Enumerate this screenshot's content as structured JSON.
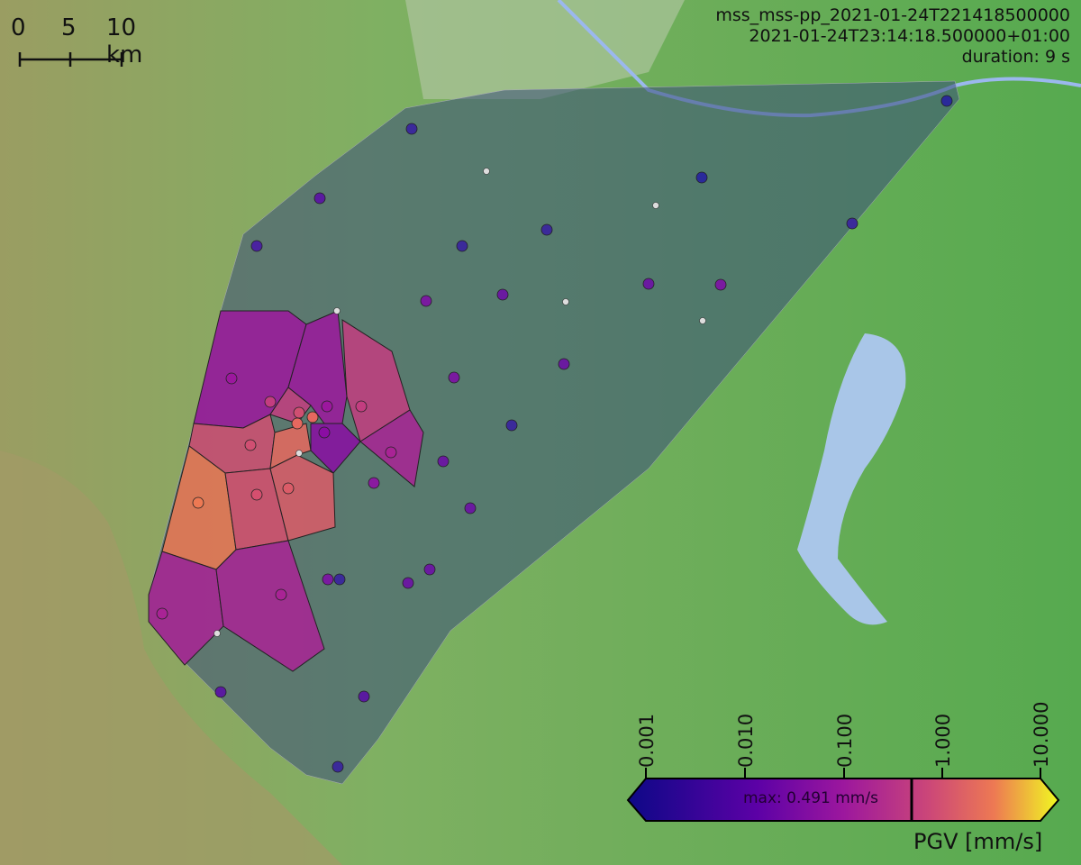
{
  "header": {
    "event_id": "mss_mss-pp_2021-01-24T221418500000",
    "origin_time": "2021-01-24T23:14:18.500000+01:00",
    "duration": "duration: 9 s"
  },
  "scalebar": {
    "labels": [
      "0",
      "5",
      "10 km"
    ]
  },
  "colorbar": {
    "label": "PGV [mm/s]",
    "ticks": [
      "0.001",
      "0.010",
      "0.100",
      "1.000",
      "10.000"
    ],
    "scale": "log",
    "range": [
      0.001,
      10
    ],
    "max_text": "max: 0.491 mm/s",
    "max_value": 0.491,
    "colormap": "plasma",
    "colors": {
      "low": "#0d0887",
      "mid": "#9c179e",
      "high": "#ed7953",
      "top": "#f0f921"
    }
  },
  "map": {
    "colors": {
      "lowland": "#5fae55",
      "terrain": "#9aa86a",
      "lake": "#a9c6e8",
      "river": "#9bb8ee",
      "hull": "#3a4f7a"
    }
  }
}
